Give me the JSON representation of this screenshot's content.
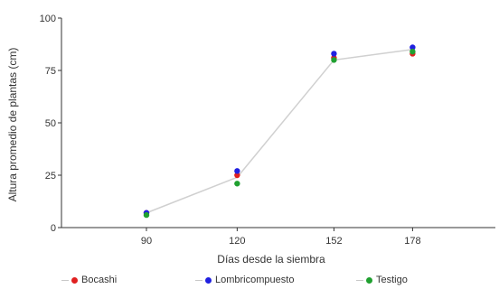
{
  "chart_data": {
    "type": "scatter",
    "xlabel": "Días desde la siembra",
    "ylabel": "Altura promedio de plantas (cm)",
    "x": [
      90,
      120,
      152,
      178
    ],
    "ylim": [
      0,
      100
    ],
    "yticks": [
      0,
      25,
      50,
      75,
      100
    ],
    "grid": false,
    "legend_position": "bottom",
    "series": [
      {
        "name": "Bocashi",
        "color": "#e02020",
        "values": [
          7,
          25,
          81,
          83
        ]
      },
      {
        "name": "Lombricompuesto",
        "color": "#2020e0",
        "values": [
          7,
          27,
          83,
          86
        ]
      },
      {
        "name": "Testigo",
        "color": "#20a030",
        "values": [
          6,
          21,
          80,
          84
        ]
      }
    ],
    "trend_line": {
      "color": "#d0d0d0",
      "values": [
        7,
        24,
        80,
        85
      ]
    }
  }
}
